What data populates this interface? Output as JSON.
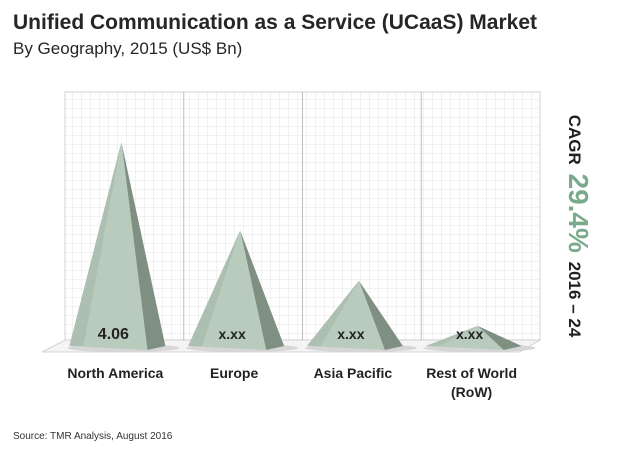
{
  "title": "Unified Communication as a Service (UCaaS) Market",
  "subtitle": "By Geography, 2015 (US$ Bn)",
  "source": "Source: TMR Analysis, August 2016",
  "cagr": {
    "label": "CAGR",
    "value": "29.4%",
    "period": "2016 – 24"
  },
  "colors": {
    "pyramid_light": "#b9cbbd",
    "pyramid_mid": "#a3b8a7",
    "pyramid_dark": "#7f8f82",
    "cagr_accent": "#7aaa8c",
    "grid": "#dcdcdc"
  },
  "chart_data": {
    "type": "bar",
    "mark": "pyramid",
    "title": "Unified Communication as a Service (UCaaS) Market",
    "subtitle": "By Geography, 2015 (US$ Bn)",
    "categories": [
      "North America",
      "Europe",
      "Asia Pacific",
      "Rest of World (RoW)"
    ],
    "category_lines": [
      [
        "North America"
      ],
      [
        "Europe"
      ],
      [
        "Asia Pacific"
      ],
      [
        "Rest of World",
        "(RoW)"
      ]
    ],
    "values": [
      4.06,
      2.3,
      1.3,
      0.4
    ],
    "value_labels": [
      "4.06",
      "x.xx",
      "x.xx",
      "x.xx"
    ],
    "ylim": [
      0,
      4.5
    ],
    "grid": true,
    "legend": "none",
    "xlabel": "",
    "ylabel": ""
  }
}
